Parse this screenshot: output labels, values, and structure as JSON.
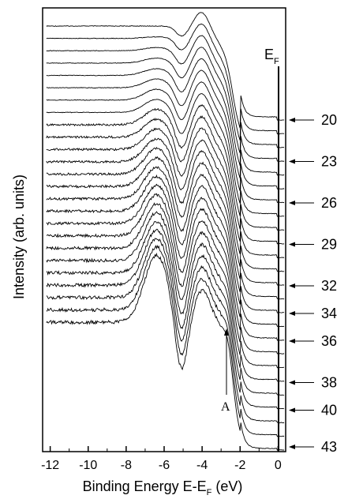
{
  "chart_data": {
    "type": "line",
    "xlabel": "Binding Energy E-E",
    "xlabel_sub": "F",
    "xlabel_unit": " (eV)",
    "ylabel": "Intensity (arb. units)",
    "xlim": [
      -12.4,
      0.4
    ],
    "x_ticks": [
      "-12",
      "-10",
      "-8",
      "-6",
      "-4",
      "-2",
      "0"
    ],
    "x_tick_values": [
      -12,
      -10,
      -8,
      -6,
      -4,
      -2,
      0
    ],
    "fermi_label": "E",
    "fermi_sub": "F",
    "annotation": {
      "label": "A",
      "x": -2.5
    },
    "arrow_labels": [
      "20",
      "23",
      "26",
      "29",
      "32",
      "34",
      "36",
      "38",
      "40",
      "43"
    ],
    "arrow_spectrum_index": [
      0,
      3,
      6,
      9,
      12,
      14,
      16,
      19,
      21,
      24
    ],
    "n_spectra": 25
  }
}
